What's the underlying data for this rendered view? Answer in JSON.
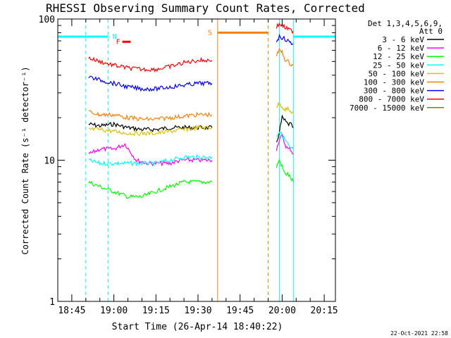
{
  "chart_data": {
    "type": "line",
    "title": "RHESSI Observing Summary Count Rates, Corrected",
    "xlabel": "Start Time (26-Apr-14 18:40:22)",
    "ylabel": "Corrected Count Rate (s⁻¹ detector⁻¹)",
    "yscale": "log",
    "ylim": [
      1,
      100
    ],
    "xlim": [
      "18:40",
      "20:19"
    ],
    "x_ticks": [
      "18:45",
      "19:00",
      "19:15",
      "19:30",
      "19:45",
      "20:00",
      "20:15"
    ],
    "y_ticks": [
      "1",
      "10",
      "100"
    ],
    "legend_header": [
      "Det 1,3,4,5,6,9,",
      "Att 0"
    ],
    "legend_position": "right",
    "timestamp": "22-Oct-2021 22:58",
    "grid": false,
    "flag_labels": {
      "N": "N",
      "F": "F",
      "S": "S"
    },
    "series": [
      {
        "name": "3 - 6 keV",
        "color": "#000000",
        "segments": [
          {
            "x": [
              "18:51",
              "18:55",
              "19:00",
              "19:05",
              "19:10",
              "19:15",
              "19:20",
              "19:25",
              "19:30",
              "19:35"
            ],
            "y": [
              18,
              17.5,
              18,
              17,
              16.5,
              16.5,
              17,
              17,
              17,
              17
            ]
          },
          {
            "x": [
              "19:58",
              "19:59",
              "20:00",
              "20:01",
              "20:02",
              "20:03",
              "20:04"
            ],
            "y": [
              13,
              16,
              20,
              19,
              18,
              18,
              17
            ]
          }
        ]
      },
      {
        "name": "6 - 12 keV",
        "color": "#ff00ff",
        "segments": [
          {
            "x": [
              "18:51",
              "18:55",
              "19:00",
              "19:04",
              "19:08",
              "19:12",
              "19:16",
              "19:20",
              "19:24",
              "19:28",
              "19:32",
              "19:35"
            ],
            "y": [
              11,
              12,
              12,
              13,
              10,
              9.5,
              9.5,
              9.5,
              10,
              10,
              10,
              10
            ]
          },
          {
            "x": [
              "19:58",
              "19:59",
              "20:00",
              "20:01",
              "20:02",
              "20:03",
              "20:04"
            ],
            "y": [
              12,
              14,
              15,
              13,
              12,
              12,
              11
            ]
          }
        ]
      },
      {
        "name": "12 - 25 keV",
        "color": "#00ff00",
        "segments": [
          {
            "x": [
              "18:51",
              "18:55",
              "19:00",
              "19:05",
              "19:10",
              "19:15",
              "19:20",
              "19:25",
              "19:30",
              "19:35"
            ],
            "y": [
              7,
              6.5,
              6,
              5.5,
              5.5,
              6,
              6.5,
              7,
              7,
              7
            ]
          },
          {
            "x": [
              "19:58",
              "19:59",
              "20:00",
              "20:01",
              "20:02",
              "20:03",
              "20:04"
            ],
            "y": [
              9,
              10,
              9,
              8,
              8,
              7.5,
              7
            ]
          }
        ]
      },
      {
        "name": "25 - 50 keV",
        "color": "#00ffff",
        "segments": [
          {
            "x": [
              "18:51",
              "18:55",
              "19:00",
              "19:05",
              "19:10",
              "19:15",
              "19:20",
              "19:25",
              "19:30",
              "19:35"
            ],
            "y": [
              10,
              9.5,
              9.5,
              9.5,
              9.5,
              9.5,
              10,
              10.5,
              10.5,
              10.5
            ]
          },
          {
            "x": [
              "19:58",
              "19:59",
              "20:00",
              "20:01",
              "20:02",
              "20:03",
              "20:04"
            ],
            "y": [
              15,
              16,
              15,
              14,
              13,
              12,
              12
            ]
          }
        ]
      },
      {
        "name": "50 - 100 keV",
        "color": "#e0c000",
        "segments": [
          {
            "x": [
              "18:51",
              "18:55",
              "19:00",
              "19:05",
              "19:10",
              "19:15",
              "19:20",
              "19:25",
              "19:30",
              "19:35"
            ],
            "y": [
              16.5,
              16.5,
              16,
              15.5,
              15.5,
              15.5,
              16,
              16.5,
              17,
              17
            ]
          },
          {
            "x": [
              "19:58",
              "19:59",
              "20:00",
              "20:01",
              "20:02",
              "20:03",
              "20:04"
            ],
            "y": [
              24,
              25,
              24,
              23,
              23,
              22,
              22
            ]
          }
        ]
      },
      {
        "name": "100 - 300 keV",
        "color": "#ff8000",
        "segments": [
          {
            "x": [
              "18:51",
              "18:55",
              "19:00",
              "19:05",
              "19:10",
              "19:15",
              "19:20",
              "19:25",
              "19:30",
              "19:35"
            ],
            "y": [
              22,
              21,
              21,
              20,
              19.5,
              19.5,
              20,
              20.5,
              21,
              21
            ]
          },
          {
            "x": [
              "19:58",
              "19:59",
              "20:00",
              "20:01",
              "20:02",
              "20:03",
              "20:04"
            ],
            "y": [
              55,
              60,
              58,
              52,
              50,
              48,
              47
            ]
          }
        ]
      },
      {
        "name": "300 - 800 keV",
        "color": "#0000ff",
        "segments": [
          {
            "x": [
              "18:51",
              "18:55",
              "19:00",
              "19:05",
              "19:10",
              "19:15",
              "19:20",
              "19:25",
              "19:30",
              "19:35"
            ],
            "y": [
              39,
              37,
              35,
              33,
              32,
              32,
              33,
              34,
              35,
              35
            ]
          },
          {
            "x": [
              "19:58",
              "19:59",
              "20:00",
              "20:01",
              "20:02",
              "20:03",
              "20:04"
            ],
            "y": [
              70,
              75,
              74,
              72,
              70,
              68,
              67
            ]
          }
        ]
      },
      {
        "name": "800 - 7000 keV",
        "color": "#ff0000",
        "segments": [
          {
            "x": [
              "18:51",
              "18:55",
              "19:00",
              "19:05",
              "19:10",
              "19:15",
              "19:20",
              "19:25",
              "19:30",
              "19:35"
            ],
            "y": [
              53,
              50,
              47,
              45,
              44,
              44,
              46,
              49,
              51,
              51
            ]
          },
          {
            "x": [
              "19:58",
              "19:59",
              "20:00",
              "20:01",
              "20:02",
              "20:03",
              "20:04"
            ],
            "y": [
              88,
              92,
              90,
              87,
              85,
              83,
              82
            ]
          }
        ]
      },
      {
        "name": "7000 - 15000 keV",
        "color": "#808000",
        "segments": []
      }
    ],
    "annotations": {
      "cyan_solid_lines": [
        "18:40",
        "19:59",
        "20:04"
      ],
      "cyan_dashed_lines": [
        "18:50",
        "18:58",
        "20:19"
      ],
      "orange_solid_lines": [
        "19:37"
      ],
      "orange_dashed_lines": [
        "19:55"
      ],
      "night_bars": [
        [
          "18:40",
          "18:58"
        ],
        [
          "20:04",
          "20:19"
        ]
      ],
      "saa_bar": [
        "19:37",
        "19:55"
      ],
      "flare_bar": [
        "19:03",
        "19:06"
      ],
      "cyan_night_level": 75,
      "orange_saa_level": 80,
      "red_flare_level": 69
    }
  }
}
